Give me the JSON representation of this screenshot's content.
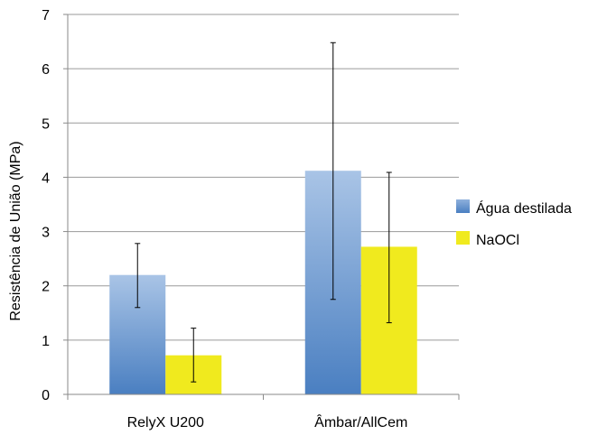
{
  "chart_data": {
    "type": "bar",
    "title": "",
    "xlabel": "",
    "ylabel": "Resistência de União (MPa)",
    "ylim": [
      0,
      7
    ],
    "yticks": [
      0,
      1,
      2,
      3,
      4,
      5,
      6,
      7
    ],
    "grid": true,
    "legend_position": "right",
    "categories": [
      "RelyX U200",
      "Âmbar/AllCem"
    ],
    "series": [
      {
        "name": "Água destilada",
        "color": "#4a7fc1",
        "values": [
          2.2,
          4.12
        ],
        "error_low": [
          1.6,
          1.75
        ],
        "error_high": [
          2.78,
          6.48
        ]
      },
      {
        "name": "NaOCl",
        "color": "#f0ea1e",
        "values": [
          0.72,
          2.72
        ],
        "error_low": [
          0.23,
          1.32
        ],
        "error_high": [
          1.22,
          4.09
        ]
      }
    ]
  }
}
